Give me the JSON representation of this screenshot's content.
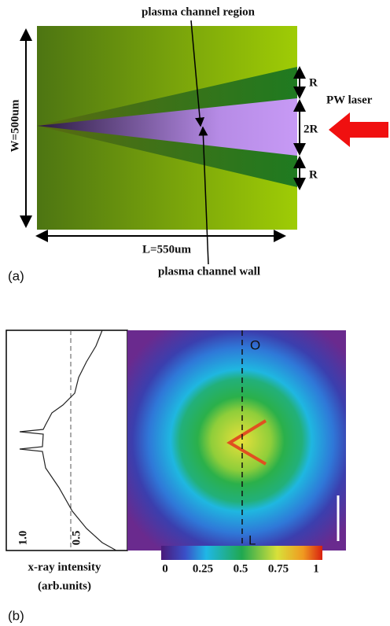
{
  "panel_a": {
    "tag": "(a)",
    "top_label": "plasma channel region",
    "bottom_label": "plasma channel wall",
    "width_label": "W=500um",
    "length_label": "L=550um",
    "r_top": "R",
    "r_middle": "2R",
    "r_bottom": "R",
    "laser": "PW laser"
  },
  "panel_b": {
    "tag": "(b)",
    "profile_axis_title": "x-ray intensity",
    "profile_axis_units": "(arb.units)",
    "profile_ticks": [
      "1.0",
      "0.5"
    ],
    "marker_top": "O",
    "marker_bottom": "L",
    "colorbar_ticks": [
      "0",
      "0.25",
      "0.5",
      "0.75",
      "1"
    ]
  }
}
